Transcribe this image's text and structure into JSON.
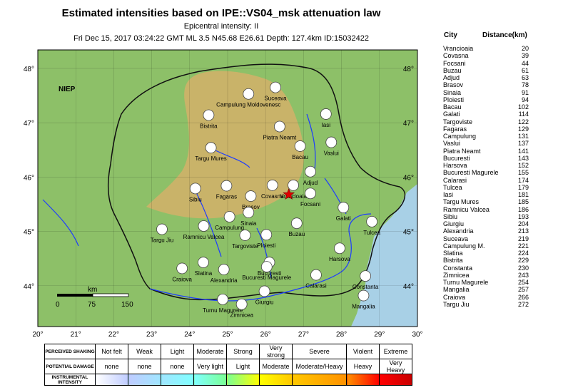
{
  "title": "Estimated intensities based on IPE::VS04_msk attenuation law",
  "subtitle": "Epicentral intensity: II",
  "event_line": "Fri Dec 15, 2017 03:24:22 GMT ML 3.5 N45.68 E26.61 Depth: 127.4km ID:15032422",
  "map": {
    "country_label": "NIEP",
    "lat_labels": [
      "48°",
      "47°",
      "46°",
      "45°",
      "44°"
    ],
    "lon_labels": [
      "20°",
      "21°",
      "22°",
      "23°",
      "24°",
      "25°",
      "26°",
      "27°",
      "28°",
      "29°",
      "30°"
    ],
    "scale_unit": "km",
    "scale_ticks": [
      "0",
      "75",
      "150"
    ],
    "epicenter": {
      "lat": 45.68,
      "lon": 26.61
    },
    "cities": [
      {
        "name": "Campulung Moldovenesc",
        "lat": 47.53,
        "lon": 25.55
      },
      {
        "name": "Suceava",
        "lat": 47.65,
        "lon": 26.26
      },
      {
        "name": "Bistrita",
        "lat": 47.14,
        "lon": 24.5
      },
      {
        "name": "Iasi",
        "lat": 47.16,
        "lon": 27.59
      },
      {
        "name": "Piatra Neamt",
        "lat": 46.93,
        "lon": 26.37
      },
      {
        "name": "Targu Mures",
        "lat": 46.54,
        "lon": 24.56
      },
      {
        "name": "Bacau",
        "lat": 46.57,
        "lon": 26.91
      },
      {
        "name": "Vaslui",
        "lat": 46.64,
        "lon": 27.73
      },
      {
        "name": "Adjud",
        "lat": 46.1,
        "lon": 27.18
      },
      {
        "name": "Vrancioaia",
        "lat": 45.85,
        "lon": 26.73
      },
      {
        "name": "Fagaras",
        "lat": 45.84,
        "lon": 24.97
      },
      {
        "name": "Sibiu",
        "lat": 45.79,
        "lon": 24.15
      },
      {
        "name": "Covasna",
        "lat": 45.85,
        "lon": 26.18
      },
      {
        "name": "Brasov",
        "lat": 45.65,
        "lon": 25.61
      },
      {
        "name": "Focsani",
        "lat": 45.7,
        "lon": 27.18
      },
      {
        "name": "Galati",
        "lat": 45.44,
        "lon": 28.05
      },
      {
        "name": "Campulung",
        "lat": 45.27,
        "lon": 25.05
      },
      {
        "name": "Sinaia",
        "lat": 45.35,
        "lon": 25.55
      },
      {
        "name": "Tulcea",
        "lat": 45.18,
        "lon": 28.8
      },
      {
        "name": "Targu Jiu",
        "lat": 45.04,
        "lon": 23.27
      },
      {
        "name": "Ramnicu Valcea",
        "lat": 45.1,
        "lon": 24.37
      },
      {
        "name": "Targoviste",
        "lat": 44.93,
        "lon": 25.46
      },
      {
        "name": "Ploiesti",
        "lat": 44.94,
        "lon": 26.02
      },
      {
        "name": "Buzau",
        "lat": 45.15,
        "lon": 26.82
      },
      {
        "name": "Harsova",
        "lat": 44.69,
        "lon": 27.95
      },
      {
        "name": "Bucuresti",
        "lat": 44.43,
        "lon": 26.1
      },
      {
        "name": "Slatina",
        "lat": 44.43,
        "lon": 24.36
      },
      {
        "name": "Craiova",
        "lat": 44.32,
        "lon": 23.8
      },
      {
        "name": "Alexandria",
        "lat": 44.3,
        "lon": 24.9
      },
      {
        "name": "Bucuresti Magurele",
        "lat": 44.35,
        "lon": 26.03
      },
      {
        "name": "Calarasi",
        "lat": 44.2,
        "lon": 27.33
      },
      {
        "name": "Constanta",
        "lat": 44.18,
        "lon": 28.63
      },
      {
        "name": "Giurgiu",
        "lat": 43.9,
        "lon": 25.97
      },
      {
        "name": "Turnu Magurele",
        "lat": 43.75,
        "lon": 24.87
      },
      {
        "name": "Zimnicea",
        "lat": 43.66,
        "lon": 25.37
      },
      {
        "name": "Mangalia",
        "lat": 43.82,
        "lon": 28.58
      }
    ]
  },
  "city_table": {
    "headers": [
      "City",
      "Distance(km)"
    ],
    "rows": [
      [
        "Vrancioaia",
        "20"
      ],
      [
        "Covasna",
        "39"
      ],
      [
        "Focsani",
        "44"
      ],
      [
        "Buzau",
        "61"
      ],
      [
        "Adjud",
        "63"
      ],
      [
        "Brasov",
        "78"
      ],
      [
        "Sinaia",
        "91"
      ],
      [
        "Ploiesti",
        "94"
      ],
      [
        "Bacau",
        "102"
      ],
      [
        "Galati",
        "114"
      ],
      [
        "Targoviste",
        "122"
      ],
      [
        "Fagaras",
        "129"
      ],
      [
        "Campulung",
        "131"
      ],
      [
        "Vaslui",
        "137"
      ],
      [
        "Piatra Neamt",
        "141"
      ],
      [
        "Bucuresti",
        "143"
      ],
      [
        "Harsova",
        "152"
      ],
      [
        "Bucuresti Magurele",
        "155"
      ],
      [
        "Calarasi",
        "174"
      ],
      [
        "Tulcea",
        "179"
      ],
      [
        "Iasi",
        "181"
      ],
      [
        "Targu Mures",
        "185"
      ],
      [
        "Ramnicu Valcea",
        "186"
      ],
      [
        "Sibiu",
        "193"
      ],
      [
        "Giurgiu",
        "204"
      ],
      [
        "Alexandria",
        "213"
      ],
      [
        "Suceava",
        "219"
      ],
      [
        "Campulung M.",
        "221"
      ],
      [
        "Slatina",
        "224"
      ],
      [
        "Bistrita",
        "229"
      ],
      [
        "Constanta",
        "230"
      ],
      [
        "Zimnicea",
        "243"
      ],
      [
        "Turnu Magurele",
        "254"
      ],
      [
        "Mangalia",
        "257"
      ],
      [
        "Craiova",
        "266"
      ],
      [
        "Targu Jiu",
        "272"
      ]
    ]
  },
  "legend": {
    "row_headers": [
      "PERCEIVED SHAKING",
      "POTENTIAL DAMAGE",
      "INSTRUMENTAL INTENSITY"
    ],
    "shaking": [
      "Not felt",
      "Weak",
      "Light",
      "Moderate",
      "Strong",
      "Very strong",
      "Severe",
      "Violent",
      "Extreme"
    ],
    "damage": [
      "none",
      "none",
      "none",
      "Very light",
      "Light",
      "Moderate",
      "Moderate/Heavy",
      "Heavy",
      "Very Heavy"
    ],
    "colors": [
      "#ffffff",
      "#bfccff",
      "#a0e6ff",
      "#80ffff",
      "#7aff93",
      "#ffff00",
      "#ffc800",
      "#ff9100",
      "#ff0000",
      "#c80000"
    ]
  }
}
